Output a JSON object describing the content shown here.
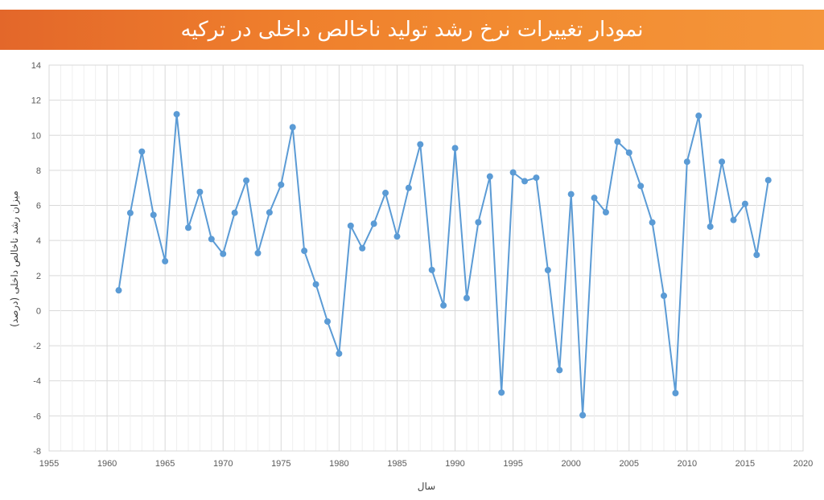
{
  "chart_data": {
    "type": "line",
    "title": "نمودار تغییرات نرخ رشد تولید ناخالص داخلی در ترکیه",
    "xlabel": "سال",
    "ylabel": "میزان رشد ناخالص داخلی (درصد)",
    "xlim": [
      1955,
      2020
    ],
    "ylim": [
      -8,
      14
    ],
    "x_ticks": [
      "1955",
      "1960",
      "1965",
      "1970",
      "1975",
      "1980",
      "1985",
      "1990",
      "1995",
      "2000",
      "2005",
      "2010",
      "2015",
      "2020"
    ],
    "y_ticks": [
      "14",
      "12",
      "10",
      "8",
      "6",
      "4",
      "2",
      "0",
      "-2",
      "-4",
      "-6",
      "-8"
    ],
    "grid": true,
    "colors": {
      "line": "#5b9bd5",
      "grid": "#d9d9d9",
      "banner": "#ef7f2c"
    },
    "series": [
      {
        "x": [
          1961,
          1962,
          1963,
          1964,
          1965,
          1966,
          1967,
          1968,
          1969,
          1970,
          1971,
          1972,
          1973,
          1974,
          1975,
          1976,
          1977,
          1978,
          1979,
          1980,
          1981,
          1982,
          1983,
          1984,
          1985,
          1986,
          1987,
          1988,
          1989,
          1990,
          1991,
          1992,
          1993,
          1994,
          1995,
          1996,
          1997,
          1998,
          1999,
          2000,
          2001,
          2002,
          2003,
          2004,
          2005,
          2006,
          2007,
          2008,
          2009,
          2010,
          2011,
          2012,
          2013,
          2014,
          2015,
          2016,
          2017
        ],
        "y": [
          1.16,
          5.57,
          9.07,
          5.46,
          2.82,
          11.2,
          4.73,
          6.77,
          4.08,
          3.24,
          5.58,
          7.42,
          3.28,
          5.6,
          7.18,
          10.46,
          3.41,
          1.5,
          -0.62,
          -2.45,
          4.84,
          3.56,
          4.96,
          6.71,
          4.23,
          7.0,
          9.48,
          2.32,
          0.3,
          9.27,
          0.72,
          5.04,
          7.65,
          -4.67,
          7.88,
          7.38,
          7.58,
          2.31,
          -3.39,
          6.64,
          -5.96,
          6.43,
          5.61,
          9.64,
          9.01,
          7.11,
          5.03,
          0.85,
          -4.7,
          8.49,
          11.11,
          4.79,
          8.49,
          5.17,
          6.09,
          3.18,
          7.44
        ]
      }
    ]
  }
}
